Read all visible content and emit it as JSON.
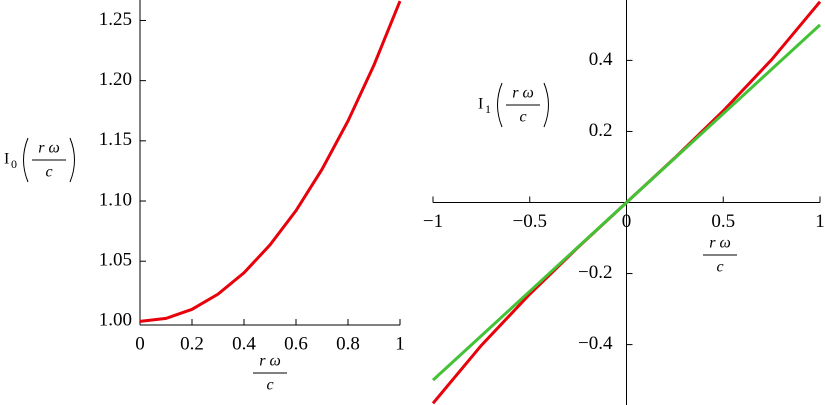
{
  "chart_data": [
    {
      "type": "line",
      "x": [
        0,
        0.1,
        0.2,
        0.3,
        0.4,
        0.5,
        0.6,
        0.7,
        0.8,
        0.9,
        1
      ],
      "series": [
        {
          "color": "#e8000b",
          "values": [
            1.0,
            1.0025,
            1.01,
            1.0226,
            1.0404,
            1.0635,
            1.092,
            1.1263,
            1.1665,
            1.213,
            1.2661
          ]
        }
      ],
      "xlim": [
        0,
        1
      ],
      "ylim": [
        0.997,
        1.267
      ],
      "xticks": [
        0,
        0.2,
        0.4,
        0.6,
        0.8,
        1
      ],
      "yticks": [
        {
          "value": 1.0,
          "label": "1.00"
        },
        1.05,
        {
          "value": 1.1,
          "label": "1.10"
        },
        1.15,
        {
          "value": 1.2,
          "label": "1.20"
        },
        1.25
      ],
      "x_label": {
        "numerator": "r ω",
        "denominator": "c"
      },
      "y_label": {
        "function": "I",
        "subscript": "0",
        "numerator": "r ω",
        "denominator": "c"
      }
    },
    {
      "type": "line",
      "x": [
        -1,
        -0.75,
        -0.5,
        -0.25,
        0,
        0.25,
        0.5,
        0.75,
        1
      ],
      "series": [
        {
          "color": "#e8000b",
          "values": [
            -0.5652,
            -0.402,
            -0.2579,
            -0.1259,
            0,
            0.1259,
            0.2579,
            0.402,
            0.5652
          ]
        },
        {
          "color": "#44c236",
          "values": [
            -0.5,
            -0.375,
            -0.25,
            -0.125,
            0,
            0.125,
            0.25,
            0.375,
            0.5
          ]
        }
      ],
      "xlim": [
        -1,
        1
      ],
      "ylim": [
        -0.57,
        0.57
      ],
      "xticks": [
        {
          "value": -1,
          "label": "−1"
        },
        {
          "value": -0.5,
          "label": "−0.5"
        },
        0,
        0.5,
        1
      ],
      "yticks": [
        {
          "value": -0.4,
          "label": "−0.4"
        },
        {
          "value": -0.2,
          "label": "−0.2"
        },
        0.2,
        0.4
      ],
      "x_label": {
        "numerator": "r ω",
        "denominator": "c"
      },
      "y_label": {
        "function": "I",
        "subscript": "1",
        "numerator": "r ω",
        "denominator": "c"
      }
    }
  ]
}
